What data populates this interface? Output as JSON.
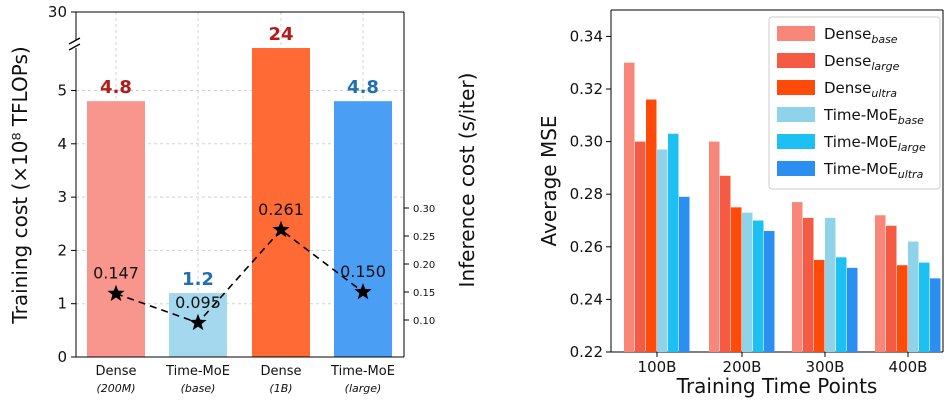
{
  "chart_data": [
    {
      "type": "bar",
      "categories": [
        {
          "name": "Dense",
          "sub": "(200M)"
        },
        {
          "name": "Time-MoE",
          "sub": "(base)"
        },
        {
          "name": "Dense",
          "sub": "(1B)"
        },
        {
          "name": "Time-MoE",
          "sub": "(large)"
        }
      ],
      "values": [
        4.8,
        1.2,
        24,
        4.8
      ],
      "value_labels": [
        "4.8",
        "1.2",
        "24",
        "4.8"
      ],
      "bar_colors": [
        "#f8968e",
        "#a3d8ee",
        "#ff6a35",
        "#4a9ff5"
      ],
      "value_label_colors": [
        "#b31b1b",
        "#1f6fb5",
        "#b31b1b",
        "#1f6fb5"
      ],
      "ylabel": "Training cost (×10⁸ TFLOPs)",
      "ylim": [
        0,
        5.5
      ],
      "yticks": [
        "0",
        "1",
        "2",
        "3",
        "4",
        "5"
      ],
      "axis_break_top_tick": "30",
      "secondary_axis": {
        "ylabel": "Inference cost (s/iter)",
        "ylim": [
          0.07,
          0.32
        ],
        "yticks": [
          "0.10",
          "0.15",
          "0.20",
          "0.25",
          "0.30"
        ],
        "line_values": [
          0.147,
          0.095,
          0.261,
          0.15
        ],
        "line_labels": [
          "0.147",
          "0.095",
          "0.261",
          "0.150"
        ],
        "marker": "star",
        "line_style": "dashed"
      },
      "grid": true
    },
    {
      "type": "bar",
      "categories": [
        "100B",
        "200B",
        "300B",
        "400B"
      ],
      "series": [
        {
          "name": "Dense",
          "sub": "base",
          "color": "#f8877a",
          "values": [
            0.33,
            0.3,
            0.277,
            0.272
          ]
        },
        {
          "name": "Dense",
          "sub": "large",
          "color": "#f55a42",
          "values": [
            0.3,
            0.287,
            0.271,
            0.268
          ]
        },
        {
          "name": "Dense",
          "sub": "ultra",
          "color": "#ff4a0a",
          "values": [
            0.316,
            0.275,
            0.255,
            0.253
          ]
        },
        {
          "name": "Time-MoE",
          "sub": "base",
          "color": "#8fd3ea",
          "values": [
            0.297,
            0.273,
            0.271,
            0.262
          ]
        },
        {
          "name": "Time-MoE",
          "sub": "large",
          "color": "#1cc0f2",
          "values": [
            0.303,
            0.27,
            0.256,
            0.254
          ]
        },
        {
          "name": "Time-MoE",
          "sub": "ultra",
          "color": "#2a8ff0",
          "values": [
            0.279,
            0.266,
            0.252,
            0.248
          ]
        }
      ],
      "xlabel": "Training Time Points",
      "ylabel": "Average MSE",
      "ylim": [
        0.22,
        0.35
      ],
      "yticks": [
        "0.22",
        "0.24",
        "0.26",
        "0.28",
        "0.30",
        "0.32",
        "0.34"
      ],
      "legend": "top-right"
    }
  ]
}
